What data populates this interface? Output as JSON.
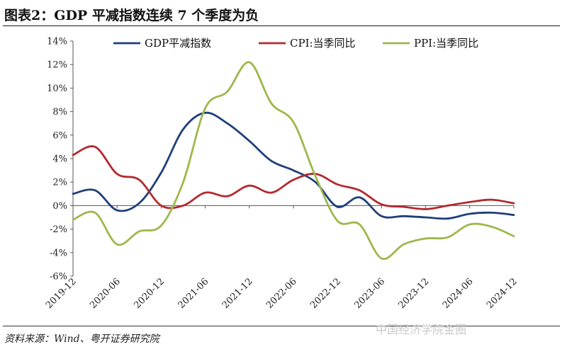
{
  "title": "图表2：GDP 平减指数连续 7 个季度为负",
  "source": "资料来源：Wind、粤开证券研究院",
  "watermark": "中国经济学院金圈",
  "chart_data": {
    "type": "line",
    "title": "图表2：GDP 平减指数连续 7 个季度为负",
    "xlabel": "",
    "ylabel": "",
    "ylim": [
      -6,
      14
    ],
    "y_ticks": [
      -6,
      -4,
      -2,
      0,
      2,
      4,
      6,
      8,
      10,
      12,
      14
    ],
    "y_tick_labels": [
      "-6%",
      "-4%",
      "-2%",
      "0%",
      "2%",
      "4%",
      "6%",
      "8%",
      "10%",
      "12%",
      "14%"
    ],
    "x_tick_labels": [
      "2019-12",
      "2020-06",
      "2020-12",
      "2021-06",
      "2021-12",
      "2022-06",
      "2022-12",
      "2023-06",
      "2023-12",
      "2024-06",
      "2024-12"
    ],
    "categories": [
      "2019-12",
      "2020-03",
      "2020-06",
      "2020-09",
      "2020-12",
      "2021-03",
      "2021-06",
      "2021-09",
      "2021-12",
      "2022-03",
      "2022-06",
      "2022-09",
      "2022-12",
      "2023-03",
      "2023-06",
      "2023-09",
      "2023-12",
      "2024-03",
      "2024-06",
      "2024-09",
      "2024-12"
    ],
    "legend_position": "top",
    "grid": false,
    "series": [
      {
        "name": "GDP平减指数",
        "color": "#1F3F7A",
        "values": [
          1.0,
          1.3,
          -0.4,
          0.2,
          2.8,
          6.5,
          7.9,
          7.0,
          5.5,
          3.8,
          3.0,
          2.0,
          -0.1,
          0.7,
          -0.9,
          -0.9,
          -1.0,
          -1.1,
          -0.7,
          -0.6,
          -0.8
        ]
      },
      {
        "name": "CPI:当季同比",
        "color": "#B22A2E",
        "values": [
          4.3,
          5.0,
          2.7,
          2.2,
          0.0,
          0.0,
          1.1,
          0.8,
          1.7,
          1.1,
          2.2,
          2.7,
          1.8,
          1.3,
          0.1,
          -0.1,
          -0.3,
          0.0,
          0.3,
          0.5,
          0.2
        ]
      },
      {
        "name": "PPI:当季同比",
        "color": "#9EB84B",
        "values": [
          -1.2,
          -0.6,
          -3.3,
          -2.2,
          -1.7,
          2.0,
          8.3,
          9.7,
          12.2,
          8.7,
          7.1,
          2.5,
          -1.3,
          -1.6,
          -4.5,
          -3.3,
          -2.8,
          -2.7,
          -1.6,
          -1.8,
          -2.6
        ]
      }
    ]
  }
}
